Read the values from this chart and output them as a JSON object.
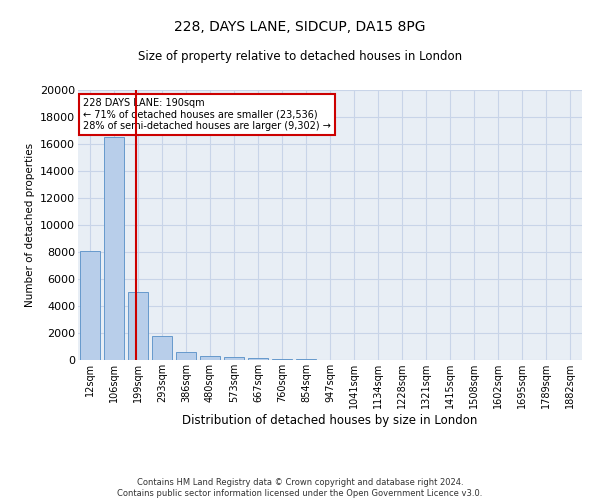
{
  "title": "228, DAYS LANE, SIDCUP, DA15 8PG",
  "subtitle": "Size of property relative to detached houses in London",
  "xlabel": "Distribution of detached houses by size in London",
  "ylabel": "Number of detached properties",
  "footer_line1": "Contains HM Land Registry data © Crown copyright and database right 2024.",
  "footer_line2": "Contains public sector information licensed under the Open Government Licence v3.0.",
  "categories": [
    "12sqm",
    "106sqm",
    "199sqm",
    "293sqm",
    "386sqm",
    "480sqm",
    "573sqm",
    "667sqm",
    "760sqm",
    "854sqm",
    "947sqm",
    "1041sqm",
    "1134sqm",
    "1228sqm",
    "1321sqm",
    "1415sqm",
    "1508sqm",
    "1602sqm",
    "1695sqm",
    "1789sqm",
    "1882sqm"
  ],
  "values": [
    8050,
    16500,
    5050,
    1800,
    600,
    300,
    200,
    150,
    100,
    50,
    30,
    20,
    15,
    10,
    5,
    5,
    5,
    5,
    5,
    5,
    5
  ],
  "bar_color": "#b8ceea",
  "bar_edge_color": "#6699cc",
  "grid_color": "#c8d4e8",
  "background_color": "#e8eef5",
  "vline_bar_index": 2,
  "vline_color": "#cc0000",
  "annotation_text": "228 DAYS LANE: 190sqm\n← 71% of detached houses are smaller (23,536)\n28% of semi-detached houses are larger (9,302) →",
  "annotation_box_color": "#cc0000",
  "ylim": [
    0,
    20000
  ],
  "yticks": [
    0,
    2000,
    4000,
    6000,
    8000,
    10000,
    12000,
    14000,
    16000,
    18000,
    20000
  ]
}
